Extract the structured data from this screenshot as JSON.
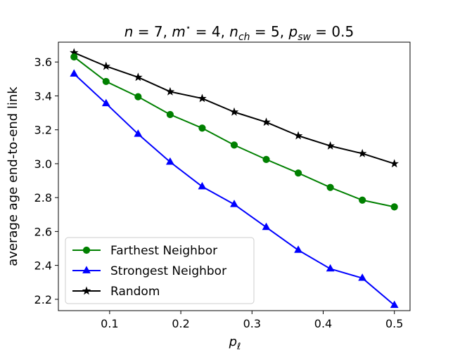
{
  "chart_data": {
    "type": "line",
    "title": "n = 7, m* = 4, n_ch = 5, p_sw = 0.5",
    "title_parts": {
      "n_var": "n",
      "n_val": " = 7, ",
      "m_var": "m",
      "m_sup": "⋆",
      "m_val": " = 4, ",
      "nch_var": "n",
      "nch_sub": "ch",
      "nch_val": " = 5, ",
      "psw_var": "p",
      "psw_sub": "sw",
      "psw_val": " = 0.5"
    },
    "xlabel": "p_ℓ",
    "xlabel_parts": {
      "var": "p",
      "sub": "ℓ"
    },
    "ylabel": "average age end-to-end link",
    "xlim": [
      0.028,
      0.522
    ],
    "ylim": [
      2.133,
      3.717
    ],
    "xticks": [
      0.1,
      0.2,
      0.3,
      0.4,
      0.5
    ],
    "xtick_labels": [
      "0.1",
      "0.2",
      "0.3",
      "0.4",
      "0.5"
    ],
    "yticks": [
      2.2,
      2.4,
      2.6,
      2.8,
      3.0,
      3.2,
      3.4,
      3.6
    ],
    "ytick_labels": [
      "2.2",
      "2.4",
      "2.6",
      "2.8",
      "3.0",
      "3.2",
      "3.4",
      "3.6"
    ],
    "x": [
      0.05,
      0.095,
      0.14,
      0.185,
      0.23,
      0.275,
      0.32,
      0.365,
      0.41,
      0.455,
      0.5
    ],
    "legend_position": "lower-left",
    "series": [
      {
        "name": "Farthest Neighbor",
        "color": "#008000",
        "marker": "circle",
        "values": [
          3.63,
          3.485,
          3.395,
          3.29,
          3.21,
          3.11,
          3.025,
          2.945,
          2.86,
          2.785,
          2.745
        ]
      },
      {
        "name": "Strongest Neighbor",
        "color": "#0000ff",
        "marker": "triangle",
        "values": [
          3.53,
          3.355,
          3.175,
          3.01,
          2.865,
          2.76,
          2.625,
          2.49,
          2.38,
          2.325,
          2.165
        ]
      },
      {
        "name": "Random",
        "color": "#000000",
        "marker": "star",
        "values": [
          3.655,
          3.575,
          3.51,
          3.425,
          3.385,
          3.305,
          3.245,
          3.165,
          3.105,
          3.06,
          3.0
        ]
      }
    ]
  }
}
